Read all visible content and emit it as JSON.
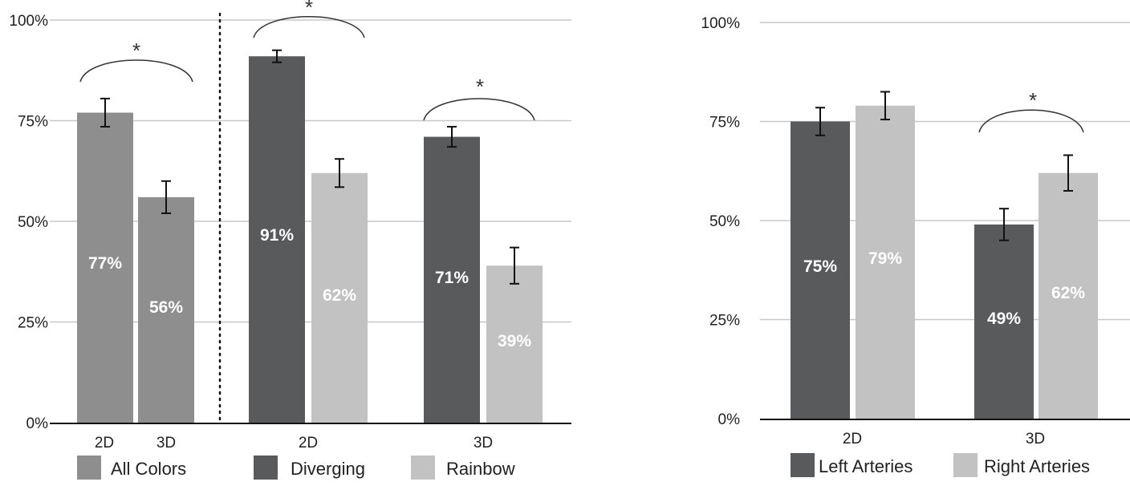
{
  "chart_data": [
    {
      "type": "bar",
      "ylim": [
        0,
        100
      ],
      "yticks": [
        "0%",
        "25%",
        "50%",
        "75%",
        "100%"
      ],
      "groups": [
        {
          "category": "2D",
          "bars": [
            {
              "series": "All Colors",
              "value": 77,
              "error": 3.5,
              "label": "77%"
            },
            {
              "series": "All Colors",
              "value": 56,
              "error": 4.0,
              "label": "56%"
            }
          ],
          "sublabels": [
            "2D",
            "3D"
          ],
          "significance": "*"
        },
        {
          "category": "2D",
          "bars": [
            {
              "series": "Diverging",
              "value": 91,
              "error": 1.5,
              "label": "91%"
            },
            {
              "series": "Rainbow",
              "value": 62,
              "error": 3.5,
              "label": "62%"
            }
          ],
          "significance": "*"
        },
        {
          "category": "3D",
          "bars": [
            {
              "series": "Diverging",
              "value": 71,
              "error": 2.5,
              "label": "71%"
            },
            {
              "series": "Rainbow",
              "value": 39,
              "error": 4.5,
              "label": "39%"
            }
          ],
          "significance": "*"
        }
      ],
      "legend": [
        {
          "name": "All Colors",
          "color": "#8e8e8e"
        },
        {
          "name": "Diverging",
          "color": "#595a5c"
        },
        {
          "name": "Rainbow",
          "color": "#c2c2c2"
        }
      ]
    },
    {
      "type": "bar",
      "ylim": [
        0,
        100
      ],
      "yticks": [
        "0%",
        "25%",
        "50%",
        "75%",
        "100%"
      ],
      "groups": [
        {
          "category": "2D",
          "bars": [
            {
              "series": "Left Arteries",
              "value": 75,
              "error": 3.5,
              "label": "75%"
            },
            {
              "series": "Right Arteries",
              "value": 79,
              "error": 3.5,
              "label": "79%"
            }
          ]
        },
        {
          "category": "3D",
          "bars": [
            {
              "series": "Left Arteries",
              "value": 49,
              "error": 4.0,
              "label": "49%"
            },
            {
              "series": "Right Arteries",
              "value": 62,
              "error": 4.5,
              "label": "62%"
            }
          ],
          "significance": "*"
        }
      ],
      "legend": [
        {
          "name": "Left Arteries",
          "color": "#595a5c"
        },
        {
          "name": "Right Arteries",
          "color": "#c2c2c2"
        }
      ]
    }
  ],
  "colors": {
    "All Colors": "#8e8e8e",
    "Diverging": "#595a5c",
    "Rainbow": "#c2c2c2",
    "Left Arteries": "#595a5c",
    "Right Arteries": "#c2c2c2",
    "gridline": "#c8c8c8",
    "axis": "#111111"
  }
}
